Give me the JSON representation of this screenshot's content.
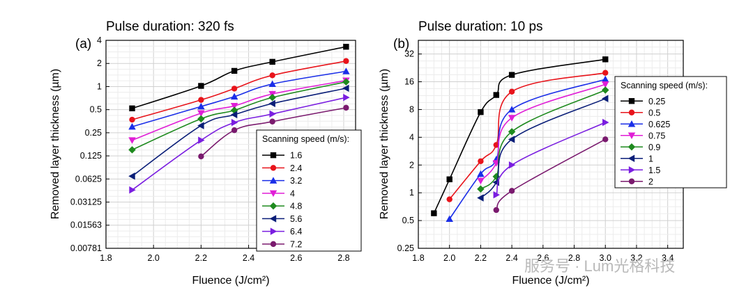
{
  "watermark": {
    "text": "服务号 · Lum光格科技"
  },
  "chart_data": [
    {
      "type": "line",
      "panel_label": "(a)",
      "title": "Pulse duration: 320 fs",
      "xlabel": "Fluence (J/cm²)",
      "ylabel": "Removed layer thickness (µm)",
      "xlim": [
        1.8,
        2.85
      ],
      "ylim": [
        0.00781,
        4
      ],
      "y_scale": "log2",
      "x_ticks": [
        "1.8",
        "2.0",
        "2.2",
        "2.4",
        "2.6",
        "2.8"
      ],
      "y_ticks": [
        "0.00781",
        "0.01563",
        "0.03125",
        "0.0625",
        "0.125",
        "0.25",
        "0.5",
        "1",
        "2",
        "4"
      ],
      "grid": true,
      "legend": {
        "title": "Scanning speed (m/s):",
        "position": "bottom-right"
      },
      "series": [
        {
          "name": "1.6",
          "color": "#000000",
          "marker": "square",
          "x": [
            1.91,
            2.2,
            2.34,
            2.5,
            2.81
          ],
          "y": [
            0.52,
            1.02,
            1.6,
            2.1,
            3.3
          ]
        },
        {
          "name": "2.4",
          "color": "#e8141b",
          "marker": "circle",
          "x": [
            1.91,
            2.2,
            2.34,
            2.5,
            2.81
          ],
          "y": [
            0.37,
            0.67,
            0.94,
            1.4,
            2.15
          ]
        },
        {
          "name": "3.2",
          "color": "#1a2ee8",
          "marker": "triangle-up",
          "x": [
            1.91,
            2.2,
            2.34,
            2.5,
            2.81
          ],
          "y": [
            0.3,
            0.55,
            0.74,
            1.08,
            1.58
          ]
        },
        {
          "name": "4",
          "color": "#e01ed6",
          "marker": "triangle-down",
          "x": [
            1.91,
            2.2,
            2.34,
            2.5,
            2.81
          ],
          "y": [
            0.2,
            0.45,
            0.56,
            0.8,
            1.2
          ]
        },
        {
          "name": "4.8",
          "color": "#1e8a1e",
          "marker": "diamond",
          "x": [
            1.91,
            2.2,
            2.34,
            2.5,
            2.81
          ],
          "y": [
            0.15,
            0.38,
            0.49,
            0.72,
            1.15
          ]
        },
        {
          "name": "5.6",
          "color": "#0a1e78",
          "marker": "triangle-left",
          "x": [
            1.91,
            2.2,
            2.34,
            2.5,
            2.81
          ],
          "y": [
            0.068,
            0.31,
            0.43,
            0.6,
            0.95
          ]
        },
        {
          "name": "6.4",
          "color": "#7a1ee0",
          "marker": "triangle-right",
          "x": [
            1.91,
            2.2,
            2.34,
            2.5,
            2.81
          ],
          "y": [
            0.045,
            0.2,
            0.34,
            0.44,
            0.72
          ]
        },
        {
          "name": "7.2",
          "color": "#7a1a6e",
          "marker": "circle",
          "x": [
            2.2,
            2.34,
            2.5,
            2.81
          ],
          "y": [
            0.123,
            0.27,
            0.35,
            0.53
          ]
        }
      ]
    },
    {
      "type": "line",
      "panel_label": "(b)",
      "title": "Pulse duration: 10 ps",
      "xlabel": "Fluence (J/cm²)",
      "ylabel": "Removed layer thickness (µm)",
      "xlim": [
        1.8,
        3.5
      ],
      "ylim": [
        0.25,
        45
      ],
      "y_scale": "log2",
      "x_ticks": [
        "1.8",
        "2.0",
        "2.2",
        "2.4",
        "2.6",
        "2.8",
        "3.0",
        "3.2",
        "3.4"
      ],
      "y_ticks": [
        "0.25",
        "0.5",
        "1",
        "2",
        "4",
        "8",
        "16",
        "32"
      ],
      "grid": true,
      "legend": {
        "title": "Scanning speed (m/s):",
        "position": "right"
      },
      "series": [
        {
          "name": "0.25",
          "color": "#000000",
          "marker": "square",
          "x": [
            1.9,
            2.0,
            2.2,
            2.3,
            2.4,
            3.0
          ],
          "y": [
            0.6,
            1.4,
            7.5,
            11.5,
            19.0,
            28.0
          ]
        },
        {
          "name": "0.5",
          "color": "#e8141b",
          "marker": "circle",
          "x": [
            2.0,
            2.2,
            2.3,
            2.4,
            3.0
          ],
          "y": [
            0.85,
            2.2,
            3.3,
            12.5,
            20.0
          ]
        },
        {
          "name": "0.625",
          "color": "#1a2ee8",
          "marker": "triangle-up",
          "x": [
            2.0,
            2.2,
            2.3,
            2.4,
            3.0
          ],
          "y": [
            0.52,
            1.6,
            2.3,
            8.0,
            17.0
          ]
        },
        {
          "name": "0.75",
          "color": "#e01ed6",
          "marker": "triangle-down",
          "x": [
            2.2,
            2.3,
            2.4,
            3.0
          ],
          "y": [
            1.35,
            2.1,
            6.5,
            15.0
          ]
        },
        {
          "name": "0.9",
          "color": "#1e8a1e",
          "marker": "diamond",
          "x": [
            2.2,
            2.3,
            2.4,
            3.0
          ],
          "y": [
            1.1,
            1.5,
            4.6,
            13.0
          ]
        },
        {
          "name": "1",
          "color": "#0a1e78",
          "marker": "triangle-left",
          "x": [
            2.2,
            2.3,
            2.4,
            3.0
          ],
          "y": [
            0.88,
            1.3,
            3.8,
            10.5
          ]
        },
        {
          "name": "1.5",
          "color": "#7a1ee0",
          "marker": "triangle-right",
          "x": [
            2.3,
            2.4,
            3.0
          ],
          "y": [
            0.95,
            2.0,
            5.8
          ]
        },
        {
          "name": "2",
          "color": "#7a1a6e",
          "marker": "circle",
          "x": [
            2.3,
            2.4,
            3.0
          ],
          "y": [
            0.65,
            1.05,
            3.8
          ]
        }
      ]
    }
  ]
}
